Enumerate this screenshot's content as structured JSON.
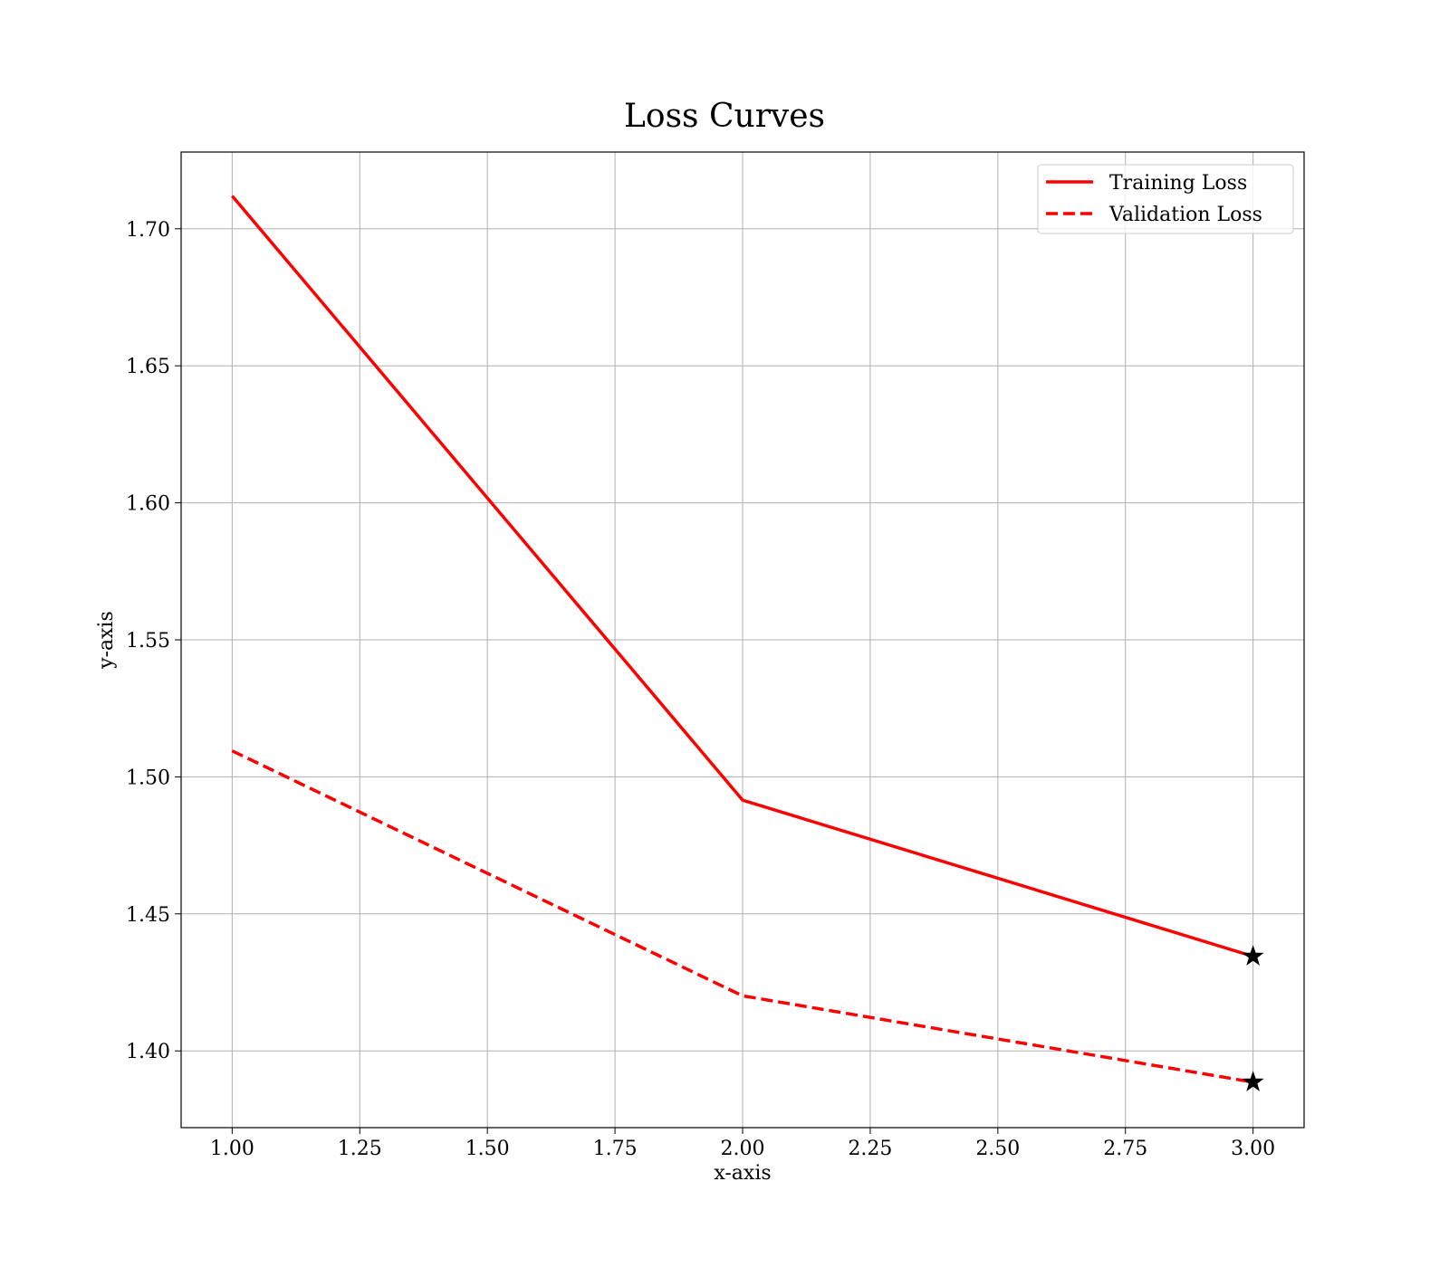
{
  "chart_data": {
    "type": "line",
    "title": "Loss Curves",
    "xlabel": "x-axis",
    "ylabel": "y-axis",
    "xlim": [
      0.9,
      3.1
    ],
    "ylim": [
      1.372,
      1.728
    ],
    "grid": true,
    "legend_position": "top-right",
    "x_ticks": [
      1.0,
      1.25,
      1.5,
      1.75,
      2.0,
      2.25,
      2.5,
      2.75,
      3.0
    ],
    "x_tick_labels": [
      "1.00",
      "1.25",
      "1.50",
      "1.75",
      "2.00",
      "2.25",
      "2.50",
      "2.75",
      "3.00"
    ],
    "y_ticks": [
      1.4,
      1.45,
      1.5,
      1.55,
      1.6,
      1.65,
      1.7
    ],
    "y_tick_labels": [
      "1.40",
      "1.45",
      "1.50",
      "1.55",
      "1.60",
      "1.65",
      "1.70"
    ],
    "x": [
      1,
      2,
      3
    ],
    "series": [
      {
        "name": "Training Loss",
        "values": [
          1.712,
          1.4915,
          1.4345
        ],
        "color": "#ff0000",
        "style": "solid",
        "end_marker": "star"
      },
      {
        "name": "Validation Loss",
        "values": [
          1.5095,
          1.4201,
          1.3886
        ],
        "color": "#ff0000",
        "style": "dashed",
        "end_marker": "star"
      }
    ],
    "marker_color": "#000000"
  }
}
